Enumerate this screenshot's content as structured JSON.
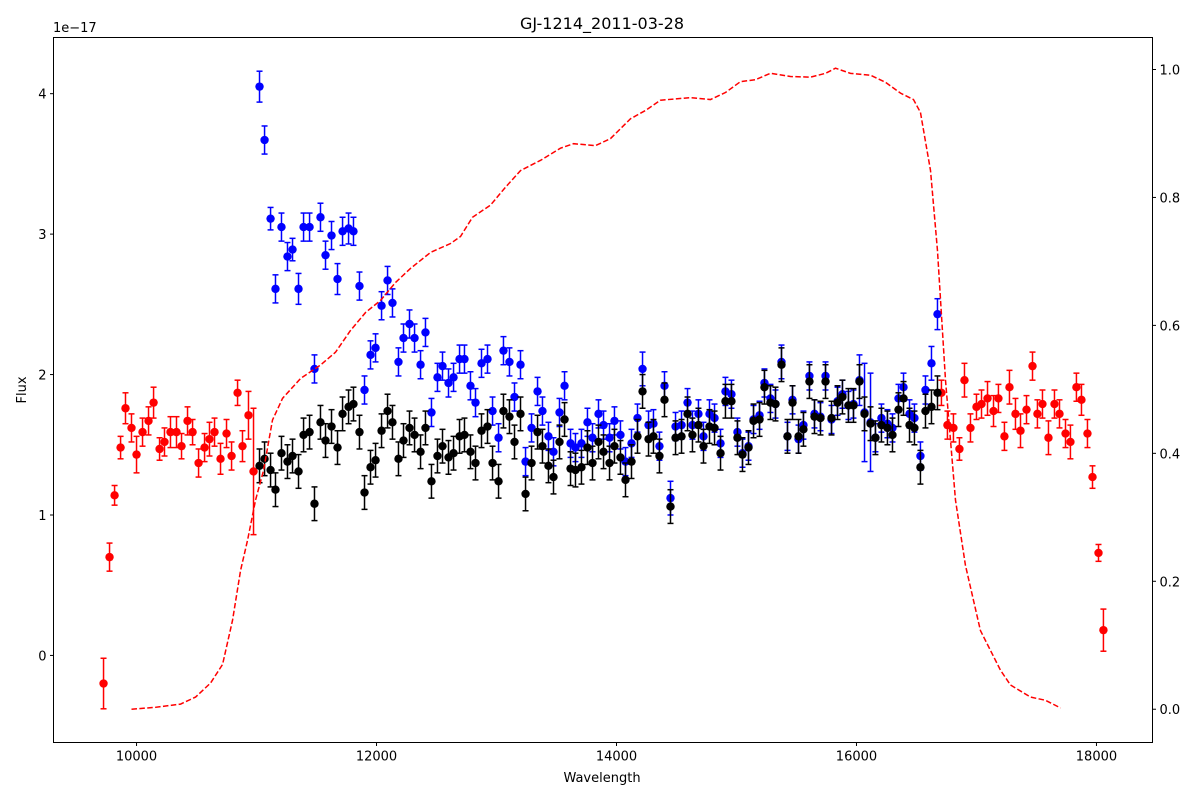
{
  "chart_data": {
    "type": "scatter",
    "title": "GJ-1214_2011-03-28",
    "xlabel": "Wavelength",
    "ylabel": "Flux",
    "y_offset_label": "1e−17",
    "xlim": [
      9308,
      18467
    ],
    "ylim": [
      -0.62,
      4.4
    ],
    "y2lim": [
      -0.052,
      1.05
    ],
    "xticks": [
      10000,
      12000,
      14000,
      16000,
      18000
    ],
    "yticks": [
      0,
      1,
      2,
      3,
      4
    ],
    "y2ticks": [
      {
        "value": 0,
        "label": "0.0"
      },
      {
        "value": 0.2,
        "label": "0.2"
      },
      {
        "value": 0.4,
        "label": "0.4"
      },
      {
        "value": 0.6,
        "label": "0.6"
      },
      {
        "value": 0.8,
        "label": "0.8"
      },
      {
        "value": 1,
        "label": "1.0"
      }
    ],
    "grid": false,
    "series": [
      {
        "color": "#ff0000",
        "mode": "errorbar",
        "x": [
          9725,
          9775,
          9817,
          9867,
          9908,
          9958,
          10000,
          10050,
          10100,
          10142,
          10192,
          10233,
          10283,
          10333,
          10375,
          10425,
          10467,
          10517,
          10567,
          10608,
          10650,
          10700,
          10750,
          10792,
          10842,
          10883,
          10933,
          10975,
          16708,
          16758,
          16808,
          16858,
          16900,
          16950,
          17000,
          17042,
          17092,
          17142,
          17183,
          17233,
          17275,
          17325,
          17367,
          17417,
          17467,
          17508,
          17550,
          17600,
          17650,
          17692,
          17742,
          17783,
          17833,
          17875,
          17925,
          17967,
          18017,
          18058
        ],
        "values": [
          -0.2,
          0.7,
          1.14,
          1.48,
          1.76,
          1.62,
          1.43,
          1.59,
          1.67,
          1.8,
          1.47,
          1.52,
          1.59,
          1.59,
          1.49,
          1.67,
          1.59,
          1.37,
          1.48,
          1.54,
          1.59,
          1.4,
          1.58,
          1.42,
          1.87,
          1.49,
          1.71,
          1.31,
          1.87,
          1.64,
          1.62,
          1.47,
          1.96,
          1.62,
          1.77,
          1.79,
          1.83,
          1.74,
          1.83,
          1.56,
          1.91,
          1.72,
          1.6,
          1.75,
          2.06,
          1.72,
          1.79,
          1.55,
          1.79,
          1.72,
          1.58,
          1.52,
          1.91,
          1.82,
          1.58,
          1.27,
          0.73,
          0.18
        ],
        "errors": [
          0.18,
          0.1,
          0.07,
          0.08,
          0.11,
          0.1,
          0.13,
          0.1,
          0.1,
          0.11,
          0.08,
          0.1,
          0.11,
          0.11,
          0.09,
          0.1,
          0.09,
          0.1,
          0.1,
          0.12,
          0.1,
          0.11,
          0.1,
          0.1,
          0.09,
          0.11,
          0.17,
          0.45,
          0.09,
          0.1,
          0.1,
          0.08,
          0.12,
          0.1,
          0.09,
          0.1,
          0.12,
          0.11,
          0.1,
          0.1,
          0.12,
          0.11,
          0.12,
          0.1,
          0.1,
          0.1,
          0.1,
          0.12,
          0.1,
          0.1,
          0.1,
          0.12,
          0.1,
          0.11,
          0.1,
          0.08,
          0.06,
          0.15
        ]
      },
      {
        "color": "#0000ff",
        "mode": "errorbar",
        "x": [
          11025,
          11067,
          11117,
          11158,
          11208,
          11258,
          11300,
          11350,
          11392,
          11442,
          11483,
          11533,
          11575,
          11625,
          11675,
          11717,
          11767,
          11808,
          11858,
          11900,
          11950,
          11992,
          12042,
          12092,
          12133,
          12183,
          12225,
          12275,
          12317,
          12367,
          12408,
          12458,
          12508,
          12550,
          12600,
          12642,
          12692,
          12733,
          12783,
          12825,
          12875,
          12925,
          12967,
          13017,
          13058,
          13108,
          13150,
          13200,
          13242,
          13292,
          13342,
          13383,
          13433,
          13475,
          13525,
          13567,
          13617,
          13658,
          13708,
          13758,
          13800,
          13850,
          13892,
          13942,
          13983,
          14033,
          14075,
          14125,
          14175,
          14217,
          14267,
          14308,
          14358,
          14400,
          14450,
          14492,
          14542,
          14592,
          14633,
          14683,
          14725,
          14775,
          14817,
          14867,
          14908,
          14958,
          15008,
          15050,
          15100,
          15142,
          15192,
          15233,
          15283,
          15325,
          15375,
          15425,
          15467,
          15517,
          15558,
          15608,
          15650,
          15700,
          15742,
          15792,
          15842,
          15883,
          15933,
          15975,
          16025,
          16067,
          16117,
          16158,
          16208,
          16258,
          16300,
          16350,
          16392,
          16442,
          16483,
          16533,
          16575,
          16625,
          16675
        ],
        "values": [
          4.05,
          3.67,
          3.11,
          2.61,
          3.05,
          2.84,
          2.89,
          2.61,
          3.05,
          3.05,
          2.04,
          3.12,
          2.85,
          2.99,
          2.68,
          3.02,
          3.04,
          3.02,
          2.63,
          1.89,
          2.14,
          2.19,
          2.49,
          2.67,
          2.51,
          2.09,
          2.26,
          2.36,
          2.26,
          2.07,
          2.3,
          1.73,
          1.98,
          2.06,
          1.94,
          1.98,
          2.11,
          2.11,
          1.92,
          1.8,
          2.08,
          2.11,
          1.74,
          1.55,
          2.17,
          2.09,
          1.84,
          2.07,
          1.38,
          1.62,
          1.88,
          1.74,
          1.56,
          1.45,
          1.73,
          1.92,
          1.51,
          1.48,
          1.51,
          1.66,
          1.55,
          1.72,
          1.64,
          1.55,
          1.67,
          1.57,
          1.38,
          1.51,
          1.69,
          2.04,
          1.64,
          1.65,
          1.49,
          1.92,
          1.12,
          1.63,
          1.64,
          1.8,
          1.64,
          1.72,
          1.56,
          1.72,
          1.69,
          1.51,
          1.88,
          1.86,
          1.59,
          1.44,
          1.49,
          1.68,
          1.71,
          1.94,
          1.83,
          1.79,
          2.09,
          1.56,
          1.82,
          1.54,
          1.64,
          1.99,
          1.72,
          1.7,
          1.99,
          1.68,
          1.81,
          1.86,
          1.78,
          1.79,
          1.96,
          1.73,
          1.66,
          1.55,
          1.69,
          1.65,
          1.62,
          1.83,
          1.91,
          1.72,
          1.69,
          1.42,
          1.89,
          2.08,
          2.43
        ],
        "errors": [
          0.11,
          0.1,
          0.08,
          0.1,
          0.1,
          0.1,
          0.08,
          0.11,
          0.1,
          0.1,
          0.1,
          0.1,
          0.1,
          0.1,
          0.11,
          0.1,
          0.11,
          0.1,
          0.1,
          0.1,
          0.1,
          0.1,
          0.1,
          0.1,
          0.1,
          0.1,
          0.1,
          0.1,
          0.1,
          0.1,
          0.1,
          0.1,
          0.1,
          0.1,
          0.1,
          0.1,
          0.1,
          0.1,
          0.1,
          0.1,
          0.1,
          0.1,
          0.1,
          0.1,
          0.1,
          0.1,
          0.1,
          0.1,
          0.1,
          0.1,
          0.1,
          0.1,
          0.1,
          0.1,
          0.1,
          0.1,
          0.1,
          0.1,
          0.1,
          0.1,
          0.1,
          0.1,
          0.1,
          0.1,
          0.1,
          0.1,
          0.1,
          0.1,
          0.1,
          0.12,
          0.1,
          0.1,
          0.1,
          0.1,
          0.12,
          0.1,
          0.1,
          0.1,
          0.1,
          0.1,
          0.1,
          0.1,
          0.1,
          0.1,
          0.1,
          0.1,
          0.1,
          0.1,
          0.1,
          0.1,
          0.1,
          0.1,
          0.1,
          0.1,
          0.12,
          0.1,
          0.1,
          0.1,
          0.1,
          0.1,
          0.1,
          0.1,
          0.1,
          0.1,
          0.1,
          0.1,
          0.1,
          0.1,
          0.18,
          0.35,
          0.35,
          0.1,
          0.1,
          0.1,
          0.1,
          0.1,
          0.1,
          0.1,
          0.1,
          0.1,
          0.1,
          0.12,
          0.11
        ]
      },
      {
        "color": "#000000",
        "mode": "errorbar",
        "x": [
          11025,
          11067,
          11117,
          11158,
          11208,
          11258,
          11300,
          11350,
          11392,
          11442,
          11483,
          11533,
          11575,
          11625,
          11675,
          11717,
          11767,
          11808,
          11858,
          11900,
          11950,
          11992,
          12042,
          12092,
          12133,
          12183,
          12225,
          12275,
          12317,
          12367,
          12408,
          12458,
          12508,
          12550,
          12600,
          12642,
          12692,
          12733,
          12783,
          12825,
          12875,
          12925,
          12967,
          13017,
          13058,
          13108,
          13150,
          13200,
          13242,
          13292,
          13342,
          13383,
          13433,
          13475,
          13525,
          13567,
          13617,
          13658,
          13708,
          13758,
          13800,
          13850,
          13892,
          13942,
          13983,
          14033,
          14075,
          14125,
          14175,
          14217,
          14267,
          14308,
          14358,
          14400,
          14450,
          14492,
          14542,
          14592,
          14633,
          14683,
          14725,
          14775,
          14817,
          14867,
          14908,
          14958,
          15008,
          15050,
          15100,
          15142,
          15192,
          15233,
          15283,
          15325,
          15375,
          15425,
          15467,
          15517,
          15558,
          15608,
          15650,
          15700,
          15742,
          15792,
          15842,
          15883,
          15933,
          15975,
          16025,
          16067,
          16117,
          16158,
          16208,
          16258,
          16300,
          16350,
          16392,
          16442,
          16483,
          16533,
          16575,
          16625,
          16675
        ],
        "values": [
          1.35,
          1.4,
          1.32,
          1.18,
          1.44,
          1.38,
          1.42,
          1.31,
          1.57,
          1.59,
          1.08,
          1.66,
          1.53,
          1.63,
          1.48,
          1.72,
          1.77,
          1.79,
          1.59,
          1.16,
          1.34,
          1.39,
          1.6,
          1.74,
          1.66,
          1.4,
          1.53,
          1.62,
          1.57,
          1.45,
          1.62,
          1.24,
          1.42,
          1.49,
          1.41,
          1.44,
          1.56,
          1.57,
          1.45,
          1.37,
          1.6,
          1.63,
          1.37,
          1.24,
          1.74,
          1.7,
          1.52,
          1.72,
          1.15,
          1.37,
          1.59,
          1.49,
          1.35,
          1.27,
          1.52,
          1.68,
          1.33,
          1.32,
          1.34,
          1.48,
          1.37,
          1.52,
          1.45,
          1.37,
          1.49,
          1.41,
          1.25,
          1.38,
          1.56,
          1.88,
          1.54,
          1.56,
          1.42,
          1.82,
          1.06,
          1.55,
          1.56,
          1.72,
          1.57,
          1.64,
          1.49,
          1.63,
          1.62,
          1.44,
          1.81,
          1.81,
          1.55,
          1.43,
          1.48,
          1.67,
          1.68,
          1.91,
          1.8,
          1.79,
          2.07,
          1.56,
          1.8,
          1.56,
          1.61,
          1.95,
          1.7,
          1.69,
          1.95,
          1.69,
          1.8,
          1.84,
          1.78,
          1.78,
          1.95,
          1.72,
          1.65,
          1.55,
          1.64,
          1.62,
          1.57,
          1.75,
          1.83,
          1.64,
          1.62,
          1.34,
          1.74,
          1.77,
          1.87
        ],
        "errors": [
          0.12,
          0.12,
          0.12,
          0.12,
          0.12,
          0.12,
          0.12,
          0.12,
          0.12,
          0.12,
          0.12,
          0.12,
          0.12,
          0.12,
          0.12,
          0.12,
          0.12,
          0.12,
          0.12,
          0.12,
          0.12,
          0.12,
          0.12,
          0.12,
          0.12,
          0.12,
          0.12,
          0.12,
          0.12,
          0.12,
          0.12,
          0.12,
          0.12,
          0.12,
          0.12,
          0.12,
          0.12,
          0.12,
          0.12,
          0.12,
          0.12,
          0.12,
          0.12,
          0.12,
          0.12,
          0.12,
          0.12,
          0.12,
          0.12,
          0.12,
          0.12,
          0.12,
          0.12,
          0.12,
          0.12,
          0.12,
          0.12,
          0.12,
          0.12,
          0.12,
          0.12,
          0.12,
          0.12,
          0.12,
          0.12,
          0.12,
          0.12,
          0.12,
          0.12,
          0.12,
          0.12,
          0.12,
          0.12,
          0.12,
          0.12,
          0.12,
          0.12,
          0.12,
          0.12,
          0.12,
          0.12,
          0.12,
          0.12,
          0.12,
          0.12,
          0.12,
          0.12,
          0.12,
          0.12,
          0.12,
          0.12,
          0.12,
          0.12,
          0.12,
          0.12,
          0.12,
          0.12,
          0.12,
          0.12,
          0.12,
          0.12,
          0.12,
          0.12,
          0.12,
          0.12,
          0.12,
          0.12,
          0.12,
          0.12,
          0.12,
          0.12,
          0.12,
          0.12,
          0.12,
          0.12,
          0.12,
          0.12,
          0.12,
          0.12,
          0.12,
          0.12,
          0.12,
          0.12
        ]
      },
      {
        "color": "#ff0000",
        "mode": "line",
        "linestyle": "dashed",
        "axis": "y2",
        "x": [
          9958,
          10158,
          10367,
          10492,
          10617,
          10717,
          10800,
          10867,
          10925,
          10992,
          11058,
          11133,
          11217,
          11367,
          11533,
          11658,
          11783,
          11908,
          12033,
          12158,
          12283,
          12450,
          12617,
          12700,
          12800,
          12950,
          13075,
          13200,
          13367,
          13533,
          13642,
          13825,
          13950,
          14117,
          14242,
          14367,
          14617,
          14783,
          14908,
          15033,
          15158,
          15283,
          15450,
          15617,
          15742,
          15825,
          15950,
          16117,
          16242,
          16367,
          16475,
          16533,
          16617,
          16675,
          16742,
          16825,
          16908,
          17033,
          17200,
          17283,
          17450,
          17575,
          17700
        ],
        "values": [
          0,
          0.003,
          0.008,
          0.019,
          0.041,
          0.07,
          0.139,
          0.217,
          0.264,
          0.327,
          0.373,
          0.452,
          0.486,
          0.517,
          0.538,
          0.558,
          0.592,
          0.62,
          0.639,
          0.667,
          0.689,
          0.714,
          0.728,
          0.739,
          0.769,
          0.788,
          0.816,
          0.842,
          0.858,
          0.877,
          0.884,
          0.881,
          0.892,
          0.923,
          0.936,
          0.952,
          0.956,
          0.953,
          0.964,
          0.981,
          0.984,
          0.994,
          0.989,
          0.988,
          0.994,
          1.002,
          0.994,
          0.991,
          0.98,
          0.963,
          0.953,
          0.933,
          0.842,
          0.717,
          0.514,
          0.327,
          0.225,
          0.123,
          0.061,
          0.038,
          0.019,
          0.014,
          0.002
        ]
      }
    ]
  }
}
